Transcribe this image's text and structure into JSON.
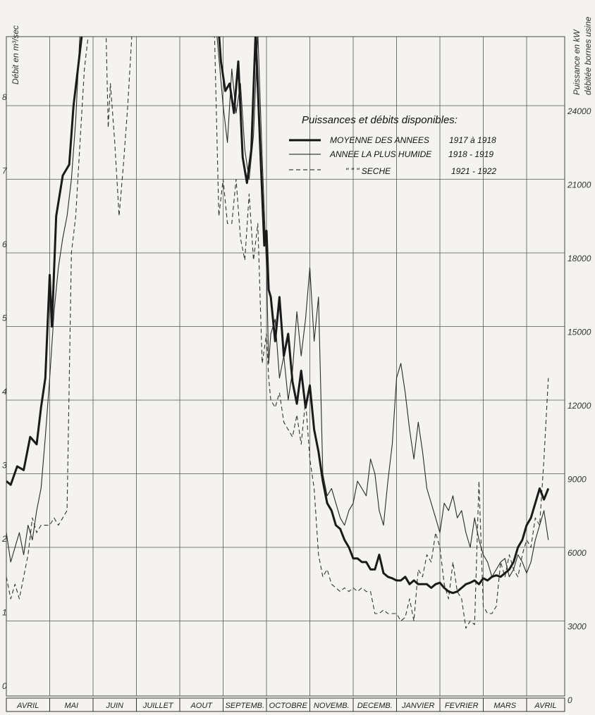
{
  "chart_data": {
    "type": "line",
    "title": "",
    "ylabel_left": "Débit en m³/sec",
    "ylabel_right_1": "Puissance en kW",
    "ylabel_right_2": "débitée bornes usine",
    "ylim_left": [
      0,
      9
    ],
    "left_ticks": [
      "0",
      "1",
      "2",
      "3",
      "4",
      "5",
      "6",
      "7",
      "8"
    ],
    "right_ticks": [
      {
        "label": "0",
        "at": 0
      },
      {
        "label": "3000",
        "at": 1
      },
      {
        "label": "6000",
        "at": 2
      },
      {
        "label": "9000",
        "at": 3
      },
      {
        "label": "12000",
        "at": 4
      },
      {
        "label": "15000",
        "at": 5
      },
      {
        "label": "18000",
        "at": 6
      },
      {
        "label": "21000",
        "at": 7
      },
      {
        "label": "24000",
        "at": 8
      }
    ],
    "xlim": [
      0,
      12.5
    ],
    "months": [
      "AVRIL",
      "MAI",
      "JUIN",
      "JUILLET",
      "AOUT",
      "SEPTEMB.",
      "OCTOBRE",
      "NOVEMB.",
      "DECEMB.",
      "JANVIER",
      "FEVRIER",
      "MARS",
      "AVRIL"
    ],
    "grid": true,
    "legend": {
      "title": "Puissances et débits disponibles:",
      "placement": "top-right",
      "entries": [
        {
          "label": "MOYENNE DES ANNEES",
          "years": "1917 à 1918",
          "style": "thick"
        },
        {
          "label": "ANNEE LA PLUS HUMIDE",
          "years": "1918 - 1919",
          "style": "thin"
        },
        {
          "label": "\"   \"   \"   SECHE",
          "years": "1921 - 1922",
          "style": "dashed"
        }
      ]
    },
    "series": [
      {
        "style": "thick",
        "x": [
          0,
          0.1,
          0.25,
          0.4,
          0.55,
          0.7,
          0.8,
          0.9,
          1.0,
          1.05,
          1.15,
          1.3,
          1.45,
          1.55,
          1.65,
          1.75,
          4.9,
          4.95,
          5.05,
          5.15,
          5.25,
          5.35,
          5.45,
          5.55,
          5.65,
          5.75,
          5.85,
          5.95,
          6.0,
          6.05,
          6.1,
          6.2,
          6.3,
          6.4,
          6.5,
          6.6,
          6.7,
          6.8,
          6.9,
          7.0,
          7.1,
          7.2,
          7.3,
          7.4,
          7.5,
          7.6,
          7.7,
          7.8,
          7.9,
          8.0,
          8.1,
          8.2,
          8.3,
          8.4,
          8.5,
          8.6,
          8.7,
          8.8,
          8.9,
          9.0,
          9.1,
          9.2,
          9.3,
          9.4,
          9.5,
          9.6,
          9.7,
          9.8,
          9.9,
          10.0,
          10.1,
          10.2,
          10.3,
          10.4,
          10.5,
          10.6,
          10.7,
          10.8,
          10.9,
          11.0,
          11.1,
          11.2,
          11.3,
          11.4,
          11.5,
          11.6,
          11.7,
          11.8,
          11.9,
          12.0,
          12.1,
          12.2,
          12.3,
          12.4,
          12.5
        ],
        "y": [
          2.9,
          2.85,
          3.1,
          3.05,
          3.5,
          3.4,
          3.9,
          4.3,
          5.7,
          5.0,
          6.5,
          7.05,
          7.2,
          8.0,
          8.5,
          9.0,
          9.0,
          8.6,
          8.2,
          8.3,
          7.9,
          8.6,
          7.3,
          6.95,
          7.4,
          9.0,
          7.5,
          6.1,
          6.3,
          5.5,
          5.4,
          4.8,
          5.4,
          4.6,
          4.9,
          4.25,
          3.95,
          4.4,
          3.9,
          4.2,
          3.6,
          3.3,
          2.9,
          2.6,
          2.5,
          2.3,
          2.25,
          2.1,
          2.0,
          1.85,
          1.85,
          1.8,
          1.8,
          1.7,
          1.7,
          1.9,
          1.65,
          1.6,
          1.58,
          1.55,
          1.55,
          1.6,
          1.5,
          1.55,
          1.5,
          1.5,
          1.5,
          1.45,
          1.5,
          1.52,
          1.45,
          1.4,
          1.38,
          1.4,
          1.45,
          1.5,
          1.52,
          1.55,
          1.5,
          1.58,
          1.55,
          1.6,
          1.62,
          1.6,
          1.65,
          1.7,
          1.8,
          2.0,
          2.1,
          2.3,
          2.4,
          2.6,
          2.8,
          2.65,
          2.8
        ]
      },
      {
        "style": "thin",
        "x": [
          0,
          0.1,
          0.2,
          0.3,
          0.4,
          0.5,
          0.6,
          0.7,
          0.8,
          0.9,
          1.0,
          1.1,
          1.2,
          1.3,
          1.4,
          1.5,
          1.6,
          1.7,
          4.85,
          5.0,
          5.1,
          5.2,
          5.3,
          5.4,
          5.5,
          5.6,
          5.7,
          5.8,
          5.9,
          6.0,
          6.05,
          6.1,
          6.2,
          6.3,
          6.4,
          6.5,
          6.6,
          6.7,
          6.8,
          6.9,
          7.0,
          7.1,
          7.2,
          7.3,
          7.4,
          7.5,
          7.6,
          7.7,
          7.8,
          7.9,
          8.0,
          8.1,
          8.2,
          8.3,
          8.4,
          8.5,
          8.6,
          8.7,
          8.8,
          8.9,
          9.0,
          9.1,
          9.2,
          9.3,
          9.4,
          9.5,
          9.6,
          9.7,
          9.8,
          9.9,
          10.0,
          10.1,
          10.2,
          10.3,
          10.4,
          10.5,
          10.6,
          10.7,
          10.8,
          10.9,
          11.0,
          11.1,
          11.2,
          11.3,
          11.4,
          11.5,
          11.6,
          11.7,
          11.8,
          11.9,
          12.0,
          12.1,
          12.2,
          12.3,
          12.4,
          12.5
        ],
        "y": [
          2.2,
          1.8,
          2.0,
          2.2,
          1.9,
          2.3,
          2.1,
          2.5,
          2.8,
          3.5,
          4.3,
          5.2,
          5.8,
          6.2,
          6.5,
          7.0,
          7.8,
          9.0,
          9.0,
          8.0,
          7.5,
          8.5,
          7.9,
          8.3,
          7.4,
          7.0,
          7.6,
          9.0,
          7.3,
          5.8,
          4.5,
          4.9,
          5.1,
          4.3,
          4.6,
          4.0,
          4.4,
          5.2,
          4.6,
          5.1,
          5.8,
          4.8,
          5.4,
          3.0,
          2.7,
          2.8,
          2.6,
          2.4,
          2.3,
          2.5,
          2.6,
          2.9,
          2.8,
          2.7,
          3.2,
          3.0,
          2.5,
          2.3,
          2.9,
          3.4,
          4.3,
          4.5,
          4.1,
          3.6,
          3.2,
          3.7,
          3.3,
          2.8,
          2.6,
          2.4,
          2.2,
          2.6,
          2.5,
          2.7,
          2.4,
          2.5,
          2.2,
          2.0,
          2.4,
          2.1,
          1.9,
          1.8,
          1.6,
          1.7,
          1.8,
          1.85,
          1.6,
          1.7,
          1.9,
          1.8,
          1.65,
          1.8,
          2.1,
          2.3,
          2.5,
          2.1
        ]
      },
      {
        "style": "dashed",
        "x": [
          0,
          0.1,
          0.2,
          0.3,
          0.4,
          0.5,
          0.6,
          0.7,
          0.8,
          0.9,
          1.0,
          1.1,
          1.2,
          1.3,
          1.4,
          1.5,
          1.6,
          1.7,
          1.8,
          1.9,
          2.3,
          2.35,
          2.4,
          2.5,
          2.6,
          2.7,
          2.8,
          2.9,
          4.8,
          4.9,
          5.0,
          5.1,
          5.2,
          5.3,
          5.4,
          5.5,
          5.6,
          5.7,
          5.8,
          5.9,
          6.0,
          6.05,
          6.1,
          6.2,
          6.3,
          6.4,
          6.5,
          6.6,
          6.7,
          6.8,
          6.9,
          7.0,
          7.1,
          7.2,
          7.3,
          7.4,
          7.5,
          7.6,
          7.7,
          7.8,
          7.9,
          8.0,
          8.1,
          8.2,
          8.3,
          8.4,
          8.5,
          8.6,
          8.7,
          8.8,
          8.9,
          9.0,
          9.1,
          9.2,
          9.3,
          9.4,
          9.5,
          9.6,
          9.7,
          9.8,
          9.9,
          10.0,
          10.1,
          10.2,
          10.3,
          10.4,
          10.5,
          10.6,
          10.7,
          10.8,
          10.9,
          11.0,
          11.1,
          11.2,
          11.3,
          11.4,
          11.5,
          11.6,
          11.7,
          11.8,
          11.9,
          12.0,
          12.1,
          12.2,
          12.3,
          12.4,
          12.5
        ],
        "y": [
          1.6,
          1.3,
          1.5,
          1.3,
          1.6,
          1.9,
          2.4,
          2.2,
          2.3,
          2.3,
          2.3,
          2.4,
          2.3,
          2.4,
          2.5,
          6.0,
          6.5,
          7.5,
          8.5,
          9.0,
          9.0,
          7.7,
          8.3,
          7.5,
          6.5,
          7.2,
          8.0,
          9.0,
          9.0,
          6.5,
          7.0,
          6.4,
          6.4,
          7.0,
          6.2,
          5.9,
          6.8,
          5.9,
          6.4,
          4.5,
          4.9,
          4.3,
          4.0,
          3.9,
          4.1,
          3.7,
          3.6,
          3.5,
          3.8,
          3.4,
          4.0,
          3.2,
          2.8,
          1.9,
          1.6,
          1.7,
          1.5,
          1.45,
          1.4,
          1.45,
          1.4,
          1.45,
          1.4,
          1.45,
          1.4,
          1.4,
          1.1,
          1.1,
          1.15,
          1.1,
          1.1,
          1.1,
          1.0,
          1.05,
          1.3,
          1.0,
          1.7,
          1.6,
          1.9,
          1.8,
          2.2,
          2.0,
          1.5,
          1.3,
          1.8,
          1.4,
          1.3,
          0.9,
          1.0,
          0.95,
          2.9,
          1.2,
          1.1,
          1.1,
          1.2,
          1.8,
          1.6,
          1.9,
          1.7,
          1.6,
          1.9,
          2.1,
          2.0,
          2.4,
          2.3,
          3.2,
          4.3
        ]
      }
    ]
  }
}
